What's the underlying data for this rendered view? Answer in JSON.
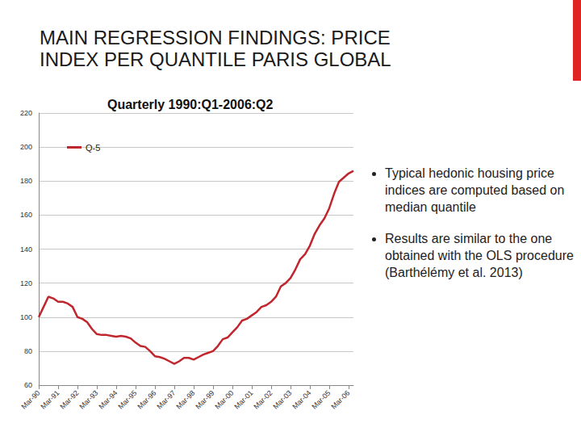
{
  "chart_data": {
    "type": "line",
    "title": "MAIN REGRESSION FINDINGS: PRICE INDEX PER QUANTILE PARIS GLOBAL",
    "subtitle": "Quarterly 1990:Q1-2006:Q2",
    "annotations": [
      "Typical hedonic housing price indices are computed based on median quantile",
      "Results are similar to the one obtained with the OLS procedure (Barthélémy et al. 2013)"
    ],
    "categories": [
      "Mar-90",
      null,
      null,
      null,
      "Mar-91",
      null,
      null,
      null,
      "Mar-92",
      null,
      null,
      null,
      "Mar-93",
      null,
      null,
      null,
      "Mar-94",
      null,
      null,
      null,
      "Mar-95",
      null,
      null,
      null,
      "Mar-96",
      null,
      null,
      null,
      "Mar-97",
      null,
      null,
      null,
      "Mar-98",
      null,
      null,
      null,
      "Mar-99",
      null,
      null,
      null,
      "Mar-00",
      null,
      null,
      null,
      "Mar-01",
      null,
      null,
      null,
      "Mar-02",
      null,
      null,
      null,
      "Mar-03",
      null,
      null,
      null,
      "Mar-04",
      null,
      null,
      null,
      "Mar-05",
      null,
      null,
      null,
      "Mar-06",
      null
    ],
    "series": [
      {
        "name": "Q-5",
        "color": "#c0262d",
        "values": [
          100,
          106,
          112,
          111,
          109,
          109,
          108,
          106,
          100,
          99,
          97,
          93,
          90,
          89.5,
          89.5,
          89,
          88.5,
          89,
          88.5,
          87.5,
          85,
          83,
          82.5,
          80,
          77,
          76.5,
          75.5,
          74,
          72.5,
          74,
          76,
          76,
          75,
          76.5,
          78,
          79,
          80,
          83,
          87,
          88,
          91,
          94,
          98,
          99,
          101,
          103,
          106,
          107,
          109,
          112,
          118,
          120,
          123,
          128,
          134,
          137,
          142,
          149,
          154,
          158,
          164,
          172.5,
          179.5,
          182,
          184.5,
          186
        ]
      }
    ],
    "ylim": [
      60,
      220
    ],
    "yticks": [
      60,
      80,
      100,
      120,
      140,
      160,
      180,
      200,
      220
    ],
    "grid": true,
    "legend": "top-left"
  }
}
